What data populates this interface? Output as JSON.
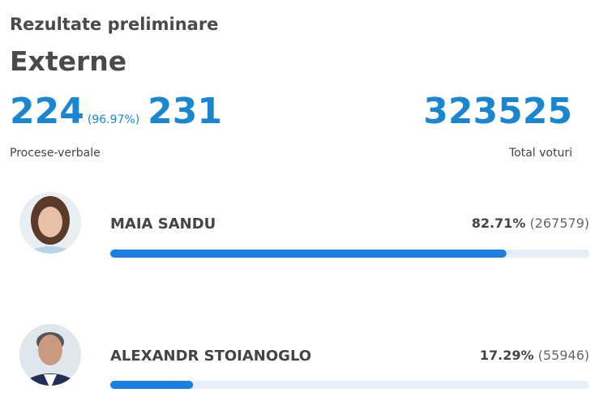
{
  "header": {
    "title": "Rezultate preliminare",
    "region": "Externe"
  },
  "stats": {
    "processed": "224",
    "processed_percent": "(96.97%)",
    "total_reports": "231",
    "reports_label": "Procese-verbale",
    "total_votes": "323525",
    "votes_label": "Total voturi"
  },
  "candidates": [
    {
      "name": "MAIA SANDU",
      "percent": {
        "value": 82.71,
        "label": "82.71%"
      },
      "votes": "(267579)"
    },
    {
      "name": "ALEXANDR STOIANOGLO",
      "percent": {
        "value": 17.29,
        "label": "17.29%"
      },
      "votes": "(55946)"
    }
  ]
}
